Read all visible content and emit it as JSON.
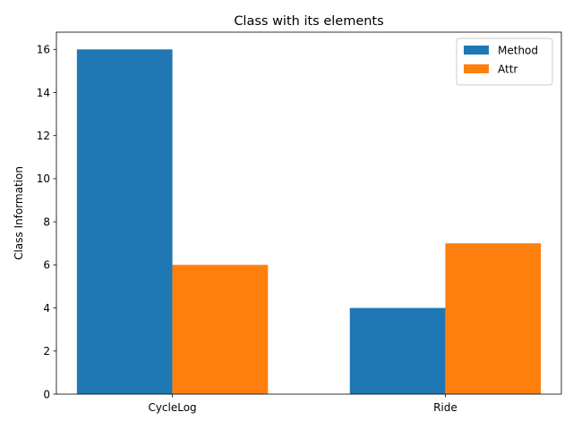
{
  "chart_data": {
    "type": "bar",
    "title": "Class with its elements",
    "xlabel": "",
    "ylabel": "Class Information",
    "categories": [
      "CycleLog",
      "Ride"
    ],
    "series": [
      {
        "name": "Method",
        "values": [
          16,
          4
        ],
        "color": "#1f77b4"
      },
      {
        "name": "Attr",
        "values": [
          6,
          7
        ],
        "color": "#ff7f0e"
      }
    ],
    "ylim": [
      0,
      16.8
    ],
    "yticks": [
      0,
      2,
      4,
      6,
      8,
      10,
      12,
      14,
      16
    ],
    "grid": false,
    "legend_position": "top-right"
  }
}
